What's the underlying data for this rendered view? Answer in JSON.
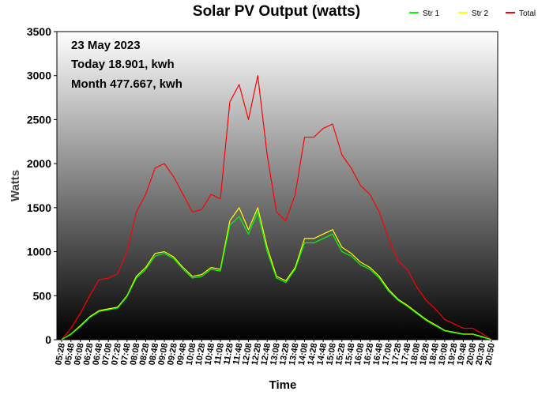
{
  "chart_data": {
    "type": "line",
    "title": "Solar PV Output (watts)",
    "xlabel": "Time",
    "ylabel": "Watts",
    "ylim": [
      0,
      3500
    ],
    "yticks": [
      0,
      500,
      1000,
      1500,
      2000,
      2500,
      3000,
      3500
    ],
    "grid": false,
    "legend_position": "top-right",
    "annotations": [
      "23 May 2023",
      "Today 18.901, kwh",
      "Month 477.667, kwh"
    ],
    "x": [
      "05:28",
      "05:48",
      "06:08",
      "06:28",
      "06:48",
      "07:08",
      "07:28",
      "07:48",
      "08:08",
      "08:28",
      "08:48",
      "09:08",
      "09:28",
      "09:48",
      "10:08",
      "10:28",
      "10:48",
      "11:08",
      "11:28",
      "11:48",
      "12:08",
      "12:28",
      "12:48",
      "13:08",
      "13:28",
      "13:48",
      "14:08",
      "14:28",
      "14:48",
      "15:08",
      "15:28",
      "15:48",
      "16:08",
      "16:28",
      "16:48",
      "17:08",
      "17:28",
      "17:48",
      "18:08",
      "18:28",
      "18:48",
      "19:08",
      "19:28",
      "19:48",
      "20:08",
      "20:30",
      "20:50"
    ],
    "series": [
      {
        "name": "Str 1",
        "color": "#00ff00",
        "values": [
          0,
          60,
          150,
          250,
          320,
          340,
          360,
          490,
          700,
          800,
          950,
          980,
          920,
          800,
          700,
          720,
          800,
          780,
          1300,
          1400,
          1200,
          1450,
          1000,
          700,
          650,
          800,
          1100,
          1100,
          1150,
          1200,
          1000,
          950,
          850,
          800,
          700,
          550,
          450,
          380,
          300,
          220,
          160,
          100,
          80,
          60,
          60,
          30,
          0
        ]
      },
      {
        "name": "Str 2",
        "color": "#ffff00",
        "values": [
          0,
          65,
          160,
          260,
          330,
          350,
          370,
          500,
          720,
          820,
          980,
          1000,
          940,
          820,
          720,
          740,
          820,
          800,
          1350,
          1500,
          1250,
          1500,
          1050,
          720,
          670,
          820,
          1150,
          1150,
          1200,
          1250,
          1050,
          980,
          880,
          820,
          720,
          570,
          460,
          390,
          310,
          230,
          170,
          105,
          85,
          65,
          65,
          35,
          0
        ]
      },
      {
        "name": "Total",
        "color": "#ff0000",
        "values": [
          0,
          130,
          300,
          500,
          680,
          700,
          750,
          1000,
          1450,
          1650,
          1950,
          2000,
          1850,
          1650,
          1450,
          1480,
          1650,
          1600,
          2700,
          2900,
          2500,
          3000,
          2100,
          1450,
          1350,
          1650,
          2300,
          2300,
          2400,
          2450,
          2100,
          1950,
          1750,
          1650,
          1450,
          1150,
          900,
          800,
          600,
          450,
          350,
          230,
          180,
          130,
          130,
          70,
          0
        ]
      }
    ]
  }
}
